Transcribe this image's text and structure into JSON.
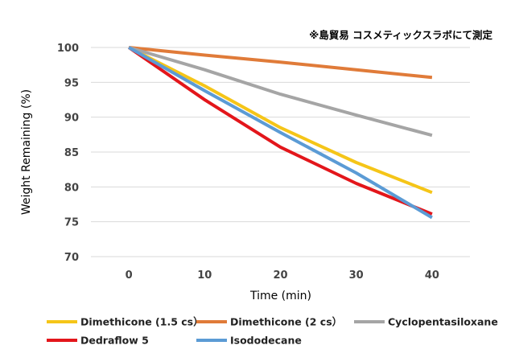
{
  "chart_data": {
    "type": "line",
    "title": "",
    "annotation": "※島貿易 コスメティックスラボにて測定",
    "xlabel": "Time (min)",
    "ylabel": "Weight Remaining (%)",
    "x": [
      0,
      10,
      20,
      30,
      40
    ],
    "xlim": [
      -5,
      45
    ],
    "ylim": [
      70,
      100
    ],
    "yticks": [
      70,
      75,
      80,
      85,
      90,
      95,
      100
    ],
    "grid": true,
    "legend_position": "bottom",
    "series": [
      {
        "name": "Dimethicone (1.5 cs）",
        "color": "#F5C518",
        "values": [
          100,
          94.5,
          88.5,
          83.5,
          79.2
        ]
      },
      {
        "name": "Dimethicone (2 cs）",
        "color": "#E07B39",
        "values": [
          100,
          98.9,
          97.9,
          96.8,
          95.7
        ]
      },
      {
        "name": "Cyclopentasiloxane",
        "color": "#A5A5A5",
        "values": [
          100,
          96.8,
          93.3,
          90.3,
          87.4
        ]
      },
      {
        "name": "Dedraflow 5",
        "color": "#E3161B",
        "values": [
          100,
          92.5,
          85.7,
          80.5,
          76.1
        ]
      },
      {
        "name": "Isododecane",
        "color": "#5B9BD5",
        "values": [
          100,
          93.8,
          87.8,
          82.0,
          75.6
        ]
      }
    ]
  }
}
